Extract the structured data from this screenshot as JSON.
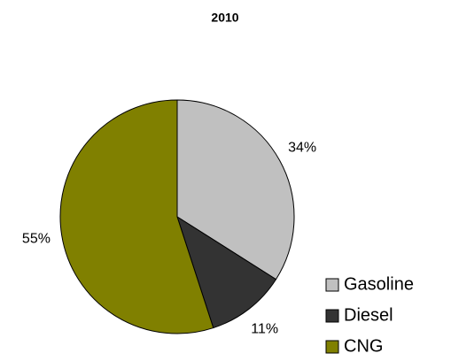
{
  "chart_data": {
    "type": "pie",
    "title": "2010",
    "categories": [
      "Gasoline",
      "Diesel",
      "CNG"
    ],
    "values": [
      34,
      11,
      55
    ],
    "value_labels": [
      "34%",
      "11%",
      "55%"
    ],
    "colors": [
      "#c0c0c0",
      "#333333",
      "#808000"
    ],
    "legend": "right"
  }
}
